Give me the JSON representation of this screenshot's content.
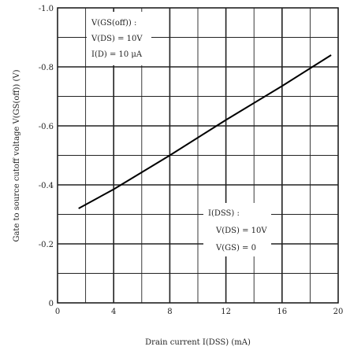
{
  "chart_data": {
    "type": "line",
    "title": "",
    "xlabel": "Drain current I(DSS) (mA)",
    "ylabel": "Gate to source cutoff voltage V(GS(off)) (V)",
    "xlim": [
      0,
      20
    ],
    "ylim": [
      0,
      -1.0
    ],
    "x_ticks": [
      "0",
      "4",
      "8",
      "12",
      "16",
      "20"
    ],
    "y_ticks": [
      "0",
      "-0.2",
      "-0.4",
      "-0.6",
      "-0.8",
      "-1.0"
    ],
    "grid": true,
    "series": [
      {
        "x": [
          1.5,
          4,
          8,
          12,
          16,
          19.5
        ],
        "y": [
          -0.32,
          -0.385,
          -0.5,
          -0.62,
          -0.735,
          -0.84
        ]
      }
    ],
    "annotations": {
      "upper": [
        "V(GS(off)) :",
        "V(DS) = 10V",
        "I(D) = 10 μA"
      ],
      "lower": [
        "I(DSS) :",
        "V(DS) = 10V",
        "V(GS) = 0"
      ]
    }
  }
}
